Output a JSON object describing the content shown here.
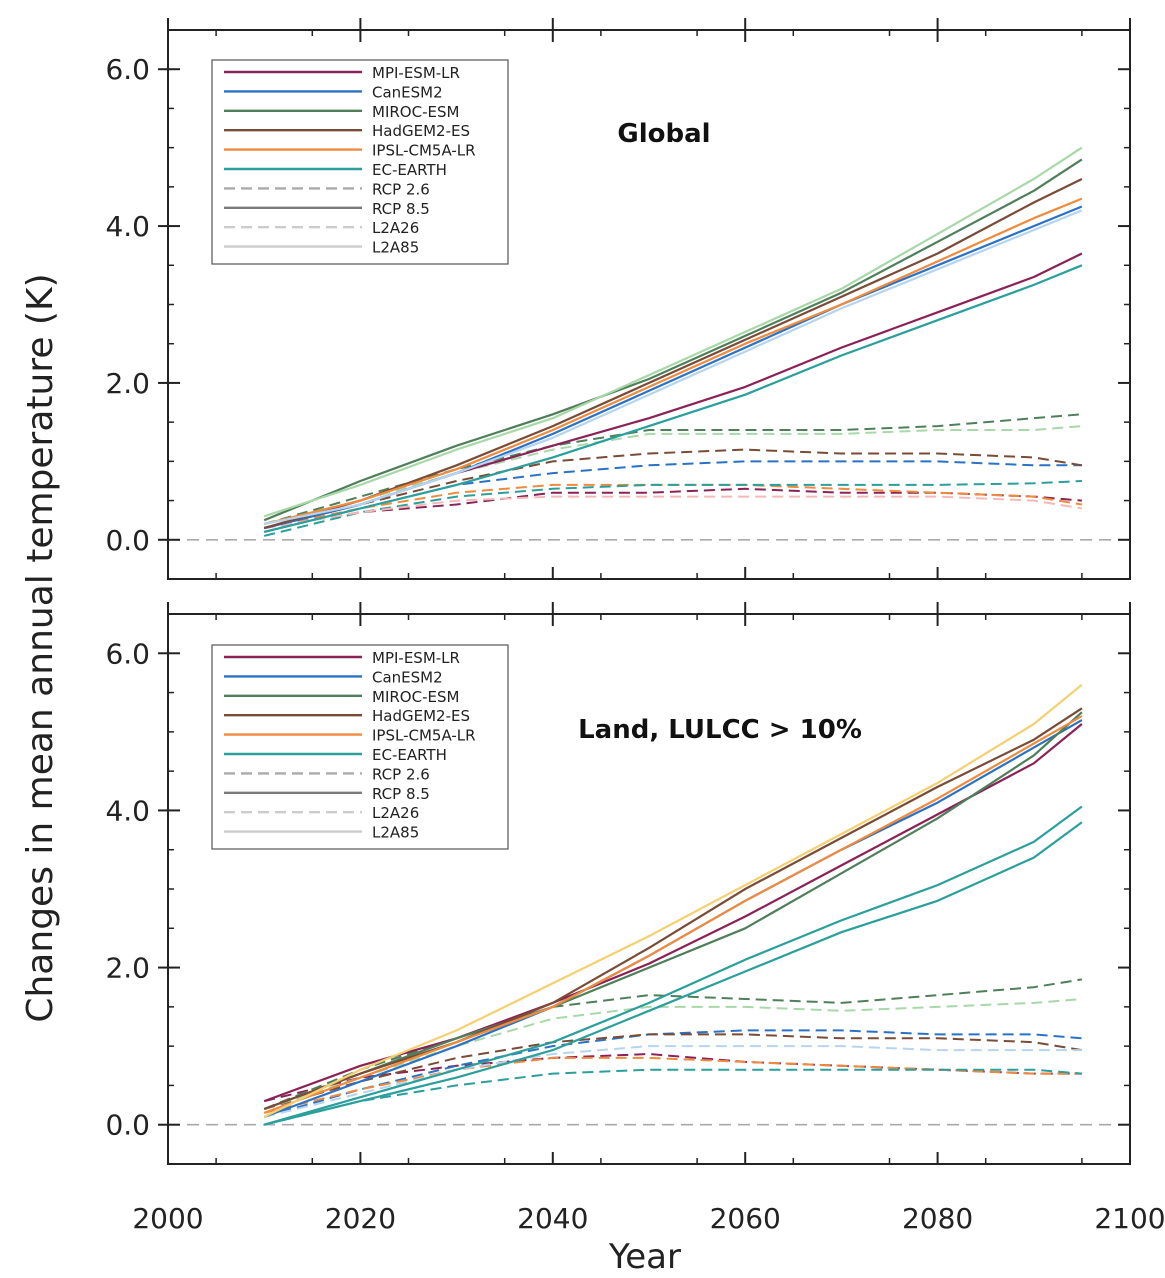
{
  "figure": {
    "ylabel": "Changes in mean annual temperature (K)",
    "xlabel": "Year",
    "x_ticks": [
      "2000",
      "2020",
      "2040",
      "2060",
      "2080",
      "2100"
    ],
    "y_ticks": [
      "0.0",
      "2.0",
      "4.0",
      "6.0"
    ]
  },
  "legend": [
    {
      "label": "MPI-ESM-LR",
      "color": "#8b2257",
      "dash": false
    },
    {
      "label": "CanESM2",
      "color": "#2a72c6",
      "dash": false
    },
    {
      "label": "MIROC-ESM",
      "color": "#4e7f5a",
      "dash": false
    },
    {
      "label": "HadGEM2-ES",
      "color": "#7a4b36",
      "dash": false
    },
    {
      "label": "IPSL-CM5A-LR",
      "color": "#f08a3c",
      "dash": false
    },
    {
      "label": "EC-EARTH",
      "color": "#2a9f9c",
      "dash": false
    },
    {
      "label": "RCP 2.6",
      "color": "#aaaaaa",
      "dash": true
    },
    {
      "label": "RCP 8.5",
      "color": "#7a7a7a",
      "dash": false
    },
    {
      "label": "L2A26",
      "color": "#cccccc",
      "dash": true
    },
    {
      "label": "L2A85",
      "color": "#cccccc",
      "dash": false
    }
  ],
  "chart_data": [
    {
      "type": "line",
      "title": "Global",
      "xlim": [
        2000,
        2100
      ],
      "ylim": [
        -0.5,
        6.5
      ],
      "x": [
        2010,
        2020,
        2030,
        2040,
        2050,
        2060,
        2070,
        2080,
        2090,
        2095
      ],
      "series": [
        {
          "name": "MPI-ESM-LR",
          "scenario": "RCP 8.5",
          "color": "#8b2257",
          "dash": false,
          "values": [
            0.15,
            0.45,
            0.85,
            1.2,
            1.55,
            1.95,
            2.45,
            2.9,
            3.35,
            3.65
          ]
        },
        {
          "name": "CanESM2",
          "scenario": "RCP 8.5",
          "color": "#2a72c6",
          "dash": false,
          "values": [
            0.15,
            0.45,
            0.85,
            1.35,
            1.9,
            2.45,
            3.0,
            3.5,
            4.0,
            4.25
          ]
        },
        {
          "name": "MIROC-ESM",
          "scenario": "RCP 8.5",
          "color": "#4e7f5a",
          "dash": false,
          "values": [
            0.25,
            0.75,
            1.2,
            1.6,
            2.05,
            2.6,
            3.15,
            3.8,
            4.45,
            4.85
          ]
        },
        {
          "name": "HadGEM2-ES",
          "scenario": "RCP 8.5",
          "color": "#7a4b36",
          "dash": false,
          "values": [
            0.15,
            0.5,
            0.95,
            1.45,
            2.0,
            2.55,
            3.1,
            3.65,
            4.3,
            4.6
          ]
        },
        {
          "name": "IPSL-CM5A-LR",
          "scenario": "RCP 8.5",
          "color": "#f08a3c",
          "dash": false,
          "values": [
            0.2,
            0.5,
            0.9,
            1.4,
            1.95,
            2.5,
            3.0,
            3.55,
            4.1,
            4.35
          ]
        },
        {
          "name": "EC-EARTH",
          "scenario": "RCP 8.5",
          "color": "#2a9f9c",
          "dash": false,
          "values": [
            0.1,
            0.4,
            0.7,
            1.05,
            1.45,
            1.85,
            2.35,
            2.8,
            3.25,
            3.5
          ]
        },
        {
          "name": "MPI-ESM-LR",
          "scenario": "RCP 2.6",
          "color": "#8b2257",
          "dash": true,
          "values": [
            0.15,
            0.35,
            0.45,
            0.6,
            0.6,
            0.65,
            0.6,
            0.6,
            0.55,
            0.5
          ]
        },
        {
          "name": "CanESM2",
          "scenario": "RCP 2.6",
          "color": "#2a72c6",
          "dash": true,
          "values": [
            0.1,
            0.4,
            0.7,
            0.85,
            0.95,
            1.0,
            1.0,
            1.0,
            0.95,
            0.95
          ]
        },
        {
          "name": "MIROC-ESM",
          "scenario": "RCP 2.6",
          "color": "#4e7f5a",
          "dash": true,
          "values": [
            0.2,
            0.55,
            0.9,
            1.2,
            1.4,
            1.4,
            1.4,
            1.45,
            1.55,
            1.6
          ]
        },
        {
          "name": "HadGEM2-ES",
          "scenario": "RCP 2.6",
          "color": "#7a4b36",
          "dash": true,
          "values": [
            0.15,
            0.45,
            0.75,
            1.0,
            1.1,
            1.15,
            1.1,
            1.1,
            1.05,
            0.95
          ]
        },
        {
          "name": "IPSL-CM5A-LR",
          "scenario": "RCP 2.6",
          "color": "#f08a3c",
          "dash": true,
          "values": [
            0.15,
            0.4,
            0.6,
            0.7,
            0.7,
            0.7,
            0.65,
            0.6,
            0.55,
            0.45
          ]
        },
        {
          "name": "EC-EARTH",
          "scenario": "RCP 2.6",
          "color": "#2a9f9c",
          "dash": true,
          "values": [
            0.05,
            0.35,
            0.55,
            0.65,
            0.7,
            0.7,
            0.7,
            0.7,
            0.72,
            0.75
          ]
        },
        {
          "name": "MIROC-ESM",
          "scenario": "L2A85",
          "color": "#a8d8a8",
          "dash": false,
          "values": [
            0.3,
            0.7,
            1.15,
            1.55,
            2.1,
            2.65,
            3.2,
            3.9,
            4.6,
            5.0
          ]
        },
        {
          "name": "CanESM2",
          "scenario": "L2A85",
          "color": "#b6d4f0",
          "dash": false,
          "values": [
            0.2,
            0.45,
            0.85,
            1.3,
            1.85,
            2.4,
            2.95,
            3.45,
            3.95,
            4.2
          ]
        },
        {
          "name": "MIROC-ESM",
          "scenario": "L2A26",
          "color": "#a8d8a8",
          "dash": true,
          "values": [
            0.2,
            0.5,
            0.85,
            1.15,
            1.35,
            1.35,
            1.35,
            1.4,
            1.4,
            1.45
          ]
        },
        {
          "name": "IPSL-CM5A-LR",
          "scenario": "L2A26",
          "color": "#f5b8b8",
          "dash": true,
          "values": [
            0.15,
            0.35,
            0.5,
            0.55,
            0.55,
            0.55,
            0.55,
            0.55,
            0.5,
            0.4
          ]
        }
      ]
    },
    {
      "type": "line",
      "title": "Land, LULCC > 10%",
      "xlim": [
        2000,
        2100
      ],
      "ylim": [
        -0.5,
        6.5
      ],
      "x": [
        2010,
        2020,
        2030,
        2040,
        2050,
        2060,
        2070,
        2080,
        2090,
        2095
      ],
      "series": [
        {
          "name": "MPI-ESM-LR",
          "scenario": "RCP 8.5",
          "color": "#8b2257",
          "dash": false,
          "values": [
            0.3,
            0.75,
            1.1,
            1.55,
            2.05,
            2.65,
            3.3,
            3.95,
            4.6,
            5.1
          ]
        },
        {
          "name": "CanESM2",
          "scenario": "RCP 8.5",
          "color": "#2a72c6",
          "dash": false,
          "values": [
            0.1,
            0.55,
            1.0,
            1.5,
            2.15,
            2.85,
            3.5,
            4.1,
            4.8,
            5.15
          ]
        },
        {
          "name": "MIROC-ESM",
          "scenario": "RCP 8.5",
          "color": "#4e7f5a",
          "dash": false,
          "values": [
            0.2,
            0.65,
            1.1,
            1.5,
            2.0,
            2.5,
            3.2,
            3.9,
            4.7,
            5.25
          ]
        },
        {
          "name": "HadGEM2-ES",
          "scenario": "RCP 8.5",
          "color": "#7a4b36",
          "dash": false,
          "values": [
            0.2,
            0.65,
            1.05,
            1.55,
            2.25,
            3.0,
            3.65,
            4.3,
            4.9,
            5.3
          ]
        },
        {
          "name": "IPSL-CM5A-LR",
          "scenario": "RCP 8.5",
          "color": "#f08a3c",
          "dash": false,
          "values": [
            0.15,
            0.6,
            1.05,
            1.5,
            2.15,
            2.85,
            3.5,
            4.15,
            4.85,
            5.2
          ]
        },
        {
          "name": "EC-EARTH",
          "scenario": "RCP 8.5",
          "color": "#2a9f9c",
          "dash": false,
          "values": [
            0.0,
            0.35,
            0.7,
            1.05,
            1.55,
            2.1,
            2.6,
            3.05,
            3.6,
            4.05
          ]
        },
        {
          "name": "MPI-ESM-LR",
          "scenario": "RCP 2.6",
          "color": "#8b2257",
          "dash": true,
          "values": [
            0.3,
            0.6,
            0.75,
            0.85,
            0.9,
            0.8,
            0.75,
            0.7,
            0.65,
            0.65
          ]
        },
        {
          "name": "CanESM2",
          "scenario": "RCP 2.6",
          "color": "#2a72c6",
          "dash": true,
          "values": [
            0.1,
            0.45,
            0.75,
            1.0,
            1.15,
            1.2,
            1.2,
            1.15,
            1.15,
            1.1
          ]
        },
        {
          "name": "MIROC-ESM",
          "scenario": "RCP 2.6",
          "color": "#4e7f5a",
          "dash": true,
          "values": [
            0.2,
            0.7,
            1.1,
            1.5,
            1.65,
            1.6,
            1.55,
            1.65,
            1.75,
            1.85
          ]
        },
        {
          "name": "HadGEM2-ES",
          "scenario": "RCP 2.6",
          "color": "#7a4b36",
          "dash": true,
          "values": [
            0.2,
            0.55,
            0.85,
            1.05,
            1.15,
            1.15,
            1.1,
            1.1,
            1.05,
            0.95
          ]
        },
        {
          "name": "IPSL-CM5A-LR",
          "scenario": "RCP 2.6",
          "color": "#f08a3c",
          "dash": true,
          "values": [
            0.15,
            0.45,
            0.7,
            0.85,
            0.85,
            0.8,
            0.75,
            0.7,
            0.65,
            0.65
          ]
        },
        {
          "name": "EC-EARTH",
          "scenario": "RCP 2.6",
          "color": "#2a9f9c",
          "dash": true,
          "values": [
            0.0,
            0.3,
            0.5,
            0.65,
            0.7,
            0.7,
            0.7,
            0.7,
            0.7,
            0.65
          ]
        },
        {
          "name": "IPSL-CM5A-LR",
          "scenario": "L2A85",
          "color": "#f5d070",
          "dash": false,
          "values": [
            0.1,
            0.7,
            1.2,
            1.8,
            2.4,
            3.05,
            3.7,
            4.35,
            5.1,
            5.6
          ]
        },
        {
          "name": "EC-EARTH",
          "scenario": "L2A85",
          "color": "#2a9f9c",
          "dash": false,
          "values": [
            0.0,
            0.3,
            0.6,
            0.95,
            1.45,
            1.95,
            2.45,
            2.85,
            3.4,
            3.85
          ]
        },
        {
          "name": "MIROC-ESM",
          "scenario": "L2A26",
          "color": "#a8d8a8",
          "dash": true,
          "values": [
            0.2,
            0.6,
            1.0,
            1.35,
            1.5,
            1.5,
            1.45,
            1.5,
            1.55,
            1.6
          ]
        },
        {
          "name": "CanESM2",
          "scenario": "L2A26",
          "color": "#b6d4f0",
          "dash": true,
          "values": [
            0.1,
            0.4,
            0.7,
            0.9,
            1.0,
            1.0,
            1.0,
            0.95,
            0.95,
            0.95
          ]
        }
      ]
    }
  ]
}
